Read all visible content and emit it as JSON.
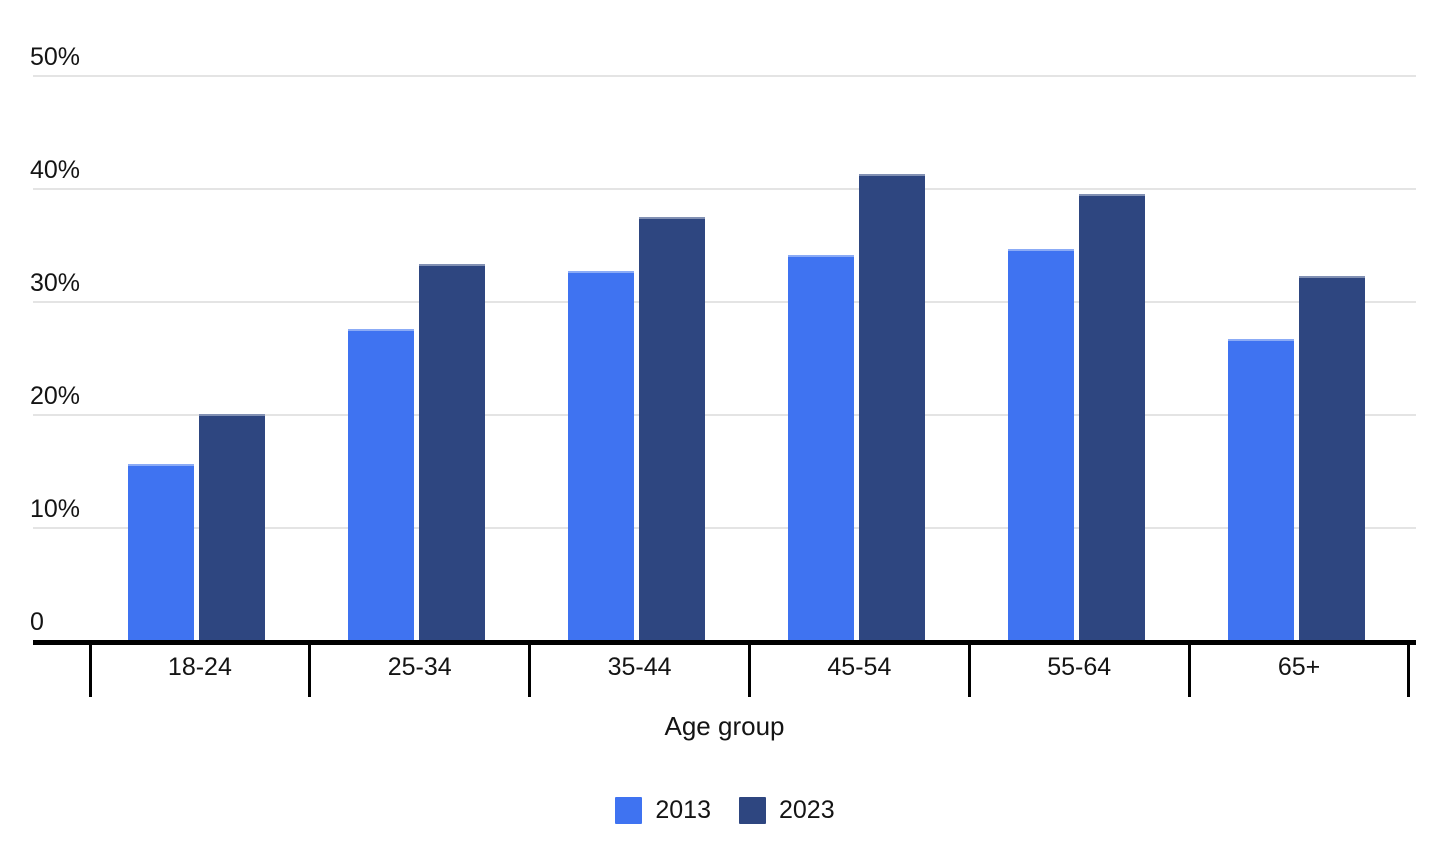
{
  "chart_data": {
    "type": "bar",
    "title": "",
    "categories": [
      "18-24",
      "25-34",
      "35-44",
      "45-54",
      "55-64",
      "65+"
    ],
    "series": [
      {
        "name": "2013",
        "color": "#3F73F1",
        "values": [
          15.7,
          27.6,
          32.7,
          34.2,
          34.7,
          26.7
        ]
      },
      {
        "name": "2023",
        "color": "#2E4680",
        "values": [
          20.1,
          33.4,
          37.5,
          41.3,
          39.6,
          32.3
        ]
      }
    ],
    "xlabel": "Age group",
    "ylabel": "",
    "ylim": [
      0,
      50
    ],
    "yticks": [
      {
        "value": 0,
        "label": "0"
      },
      {
        "value": 10,
        "label": "10%"
      },
      {
        "value": 20,
        "label": "20%"
      },
      {
        "value": 30,
        "label": "30%"
      },
      {
        "value": 40,
        "label": "40%"
      },
      {
        "value": 50,
        "label": "50%"
      }
    ],
    "grid": true,
    "legend_position": "bottom",
    "value_unit": "%",
    "colors": {
      "grid": "#E4E4E4",
      "axis": "#000000",
      "text": "#141414",
      "background": "#FFFFFF"
    }
  }
}
